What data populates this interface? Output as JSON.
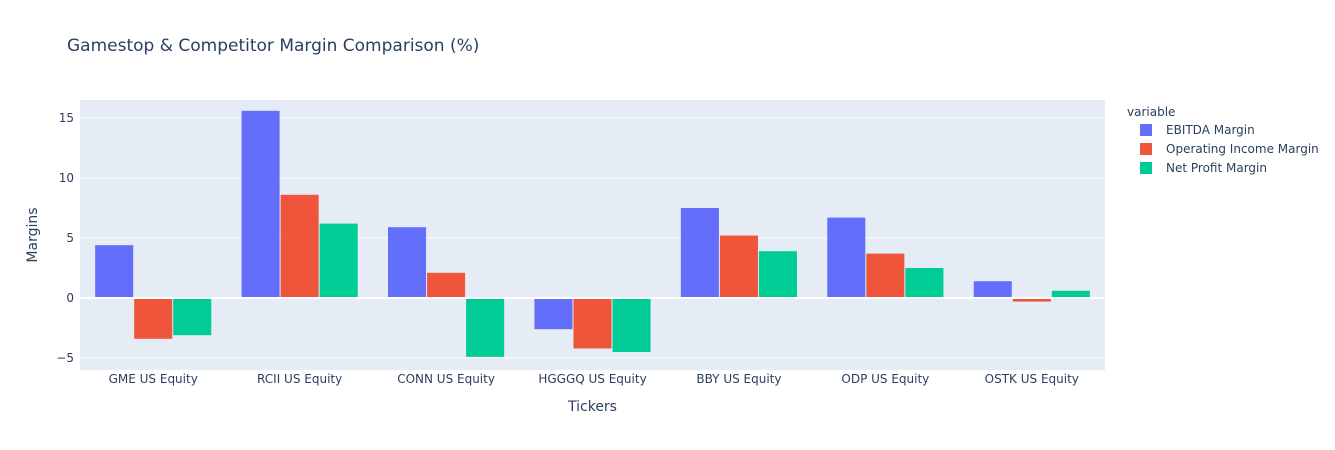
{
  "chart_data": {
    "type": "bar",
    "title": "Gamestop & Competitor Margin Comparison (%)",
    "xlabel": "Tickers",
    "ylabel": "Margins",
    "legend_title": "variable",
    "legend_position": "top-right",
    "ylim": [
      -6,
      16.5
    ],
    "yticks": [
      -5,
      0,
      5,
      10,
      15
    ],
    "ytick_labels": [
      "−5",
      "0",
      "5",
      "10",
      "15"
    ],
    "grid": true,
    "categories": [
      "GME US Equity",
      "RCII US Equity",
      "CONN US Equity",
      "HGGGQ US Equity",
      "BBY US Equity",
      "ODP US Equity",
      "OSTK US Equity"
    ],
    "series": [
      {
        "name": "EBITDA Margin",
        "color": "#636efa",
        "values": [
          4.4,
          15.6,
          5.9,
          -2.6,
          7.5,
          6.7,
          1.4
        ]
      },
      {
        "name": "Operating Income Margin",
        "color": "#ef553b",
        "values": [
          -3.4,
          8.6,
          2.1,
          -4.2,
          5.2,
          3.7,
          -0.3
        ]
      },
      {
        "name": "Net Profit Margin",
        "color": "#00cc96",
        "values": [
          -3.1,
          6.2,
          -4.9,
          -4.5,
          3.9,
          2.5,
          0.6
        ]
      }
    ]
  }
}
